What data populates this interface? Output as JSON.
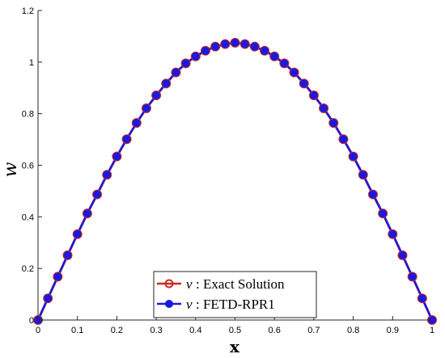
{
  "chart_data": {
    "type": "line",
    "xlabel": "x",
    "ylabel": "w",
    "xlim": [
      0,
      1
    ],
    "ylim": [
      0,
      1.2
    ],
    "x_ticks": [
      "0",
      "0.1",
      "0.2",
      "0.3",
      "0.4",
      "0.5",
      "0.6",
      "0.7",
      "0.8",
      "0.9",
      "1"
    ],
    "y_ticks": [
      "0",
      "0.2",
      "0.4",
      "0.6",
      "0.8",
      "1",
      "1.2"
    ],
    "grid": false,
    "legend_position": "bottom-center",
    "x": [
      0,
      0.025,
      0.05,
      0.075,
      0.1,
      0.125,
      0.15,
      0.175,
      0.2,
      0.225,
      0.25,
      0.275,
      0.3,
      0.325,
      0.35,
      0.375,
      0.4,
      0.425,
      0.45,
      0.475,
      0.5,
      0.525,
      0.55,
      0.575,
      0.6,
      0.625,
      0.65,
      0.675,
      0.7,
      0.725,
      0.75,
      0.775,
      0.8,
      0.825,
      0.85,
      0.875,
      0.9,
      0.925,
      0.95,
      0.975,
      1
    ],
    "series": [
      {
        "name": "Exact Solution",
        "legend_prefix": "v",
        "color": "#cc2a1e",
        "marker": "open-circle",
        "values": [
          0,
          0.084,
          0.168,
          0.251,
          0.333,
          0.413,
          0.487,
          0.563,
          0.634,
          0.701,
          0.764,
          0.821,
          0.871,
          0.917,
          0.96,
          0.995,
          1.022,
          1.044,
          1.06,
          1.07,
          1.075,
          1.07,
          1.06,
          1.044,
          1.022,
          0.995,
          0.96,
          0.917,
          0.871,
          0.821,
          0.764,
          0.701,
          0.634,
          0.563,
          0.487,
          0.413,
          0.333,
          0.251,
          0.168,
          0.084,
          0
        ]
      },
      {
        "name": "FETD-RPR1",
        "legend_prefix": "v",
        "color": "#1a1adf",
        "marker": "filled-circle",
        "values": [
          0,
          0.084,
          0.168,
          0.251,
          0.333,
          0.413,
          0.487,
          0.563,
          0.634,
          0.701,
          0.764,
          0.821,
          0.871,
          0.917,
          0.96,
          0.995,
          1.022,
          1.044,
          1.06,
          1.07,
          1.075,
          1.07,
          1.06,
          1.044,
          1.022,
          0.995,
          0.96,
          0.917,
          0.871,
          0.821,
          0.764,
          0.701,
          0.634,
          0.563,
          0.487,
          0.413,
          0.333,
          0.251,
          0.168,
          0.084,
          0
        ]
      }
    ]
  },
  "legend": {
    "entries": [
      {
        "prefix": "v",
        "text": ": Exact Solution"
      },
      {
        "prefix": "v",
        "text": ": FETD-RPR1"
      }
    ]
  }
}
